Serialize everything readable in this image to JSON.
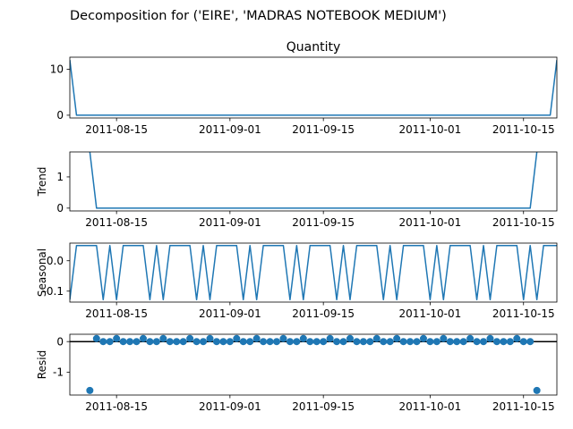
{
  "figure": {
    "suptitle": "Decomposition for ('EIRE', 'MADRAS NOTEBOOK MEDIUM')"
  },
  "chart_data": [
    {
      "type": "line",
      "title": "Quantity",
      "ylabel": "",
      "xlabel": "",
      "x_start": "2011-08-08",
      "x_end": "2011-10-20",
      "xlim": [
        "2011-08-08",
        "2011-10-20"
      ],
      "ylim": [
        -0.6,
        12.6
      ],
      "yticks": [
        0,
        10
      ],
      "xticks": [
        "2011-08-15",
        "2011-09-01",
        "2011-09-15",
        "2011-10-01",
        "2011-10-15"
      ],
      "series": [
        {
          "points": [
            [
              "2011-08-08",
              12
            ],
            [
              "2011-08-09",
              0
            ],
            [
              "2011-10-19",
              0
            ],
            [
              "2011-10-20",
              12
            ]
          ]
        }
      ]
    },
    {
      "type": "line",
      "title": "",
      "ylabel": "Trend",
      "xlabel": "",
      "xlim": [
        "2011-08-08",
        "2011-10-20"
      ],
      "ylim": [
        -0.09,
        1.8
      ],
      "yticks": [
        0,
        1
      ],
      "xticks": [
        "2011-08-15",
        "2011-09-01",
        "2011-09-15",
        "2011-10-01",
        "2011-10-15"
      ],
      "series": [
        {
          "points": [
            [
              "2011-08-11",
              1.8
            ],
            [
              "2011-08-12",
              0
            ],
            [
              "2011-10-16",
              0
            ],
            [
              "2011-10-17",
              1.8
            ]
          ]
        }
      ]
    },
    {
      "type": "line",
      "title": "",
      "ylabel": "Seasonal",
      "xlabel": "",
      "xlim": [
        "2011-08-08",
        "2011-10-20"
      ],
      "ylim": [
        -0.136,
        0.058
      ],
      "yticks": [
        -0.1,
        0.0
      ],
      "xticks": [
        "2011-08-15",
        "2011-09-01",
        "2011-09-15",
        "2011-10-01",
        "2011-10-15"
      ],
      "weekly_pattern": [
        -0.128,
        0.05,
        0.05,
        0.05,
        0.05,
        -0.128,
        0.05
      ],
      "series": [
        {
          "x_start": "2011-08-08",
          "x_end": "2011-10-20",
          "values_cycle": "weekly_pattern"
        }
      ]
    },
    {
      "type": "scatter",
      "title": "",
      "ylabel": "Resid",
      "xlabel": "",
      "xlim": [
        "2011-08-08",
        "2011-10-20"
      ],
      "ylim": [
        -1.75,
        0.24
      ],
      "yticks": [
        -1,
        0
      ],
      "xticks": [
        "2011-08-15",
        "2011-09-01",
        "2011-09-15",
        "2011-10-01",
        "2011-10-15"
      ],
      "baseline": 0,
      "series": [
        {
          "x_start": "2011-08-11",
          "x_end": "2011-10-17",
          "outliers": [
            [
              "2011-08-11",
              -1.6
            ],
            [
              "2011-10-17",
              -1.6
            ]
          ],
          "weekly_pattern": [
            0.0,
            0.1,
            0.0,
            0.0,
            0.1,
            0.0,
            0.0
          ]
        }
      ]
    }
  ]
}
